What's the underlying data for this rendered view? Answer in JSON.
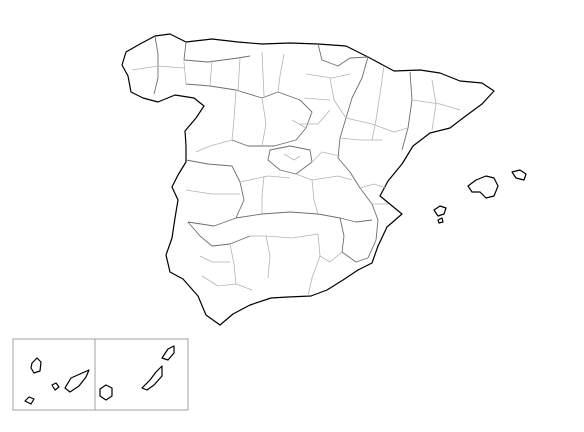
{
  "map": {
    "subject": "spain-provinces-blank-outline",
    "labels_shown": false,
    "colors": {
      "background": "#ffffff",
      "coastline": "#000000",
      "region_border": "#6e6e6e",
      "province_border": "#b4b4b4",
      "inset_frame": "#a0a0a0"
    },
    "features": [
      "iberian-peninsula-spain",
      "balearic-islands",
      "canary-islands-inset"
    ]
  }
}
